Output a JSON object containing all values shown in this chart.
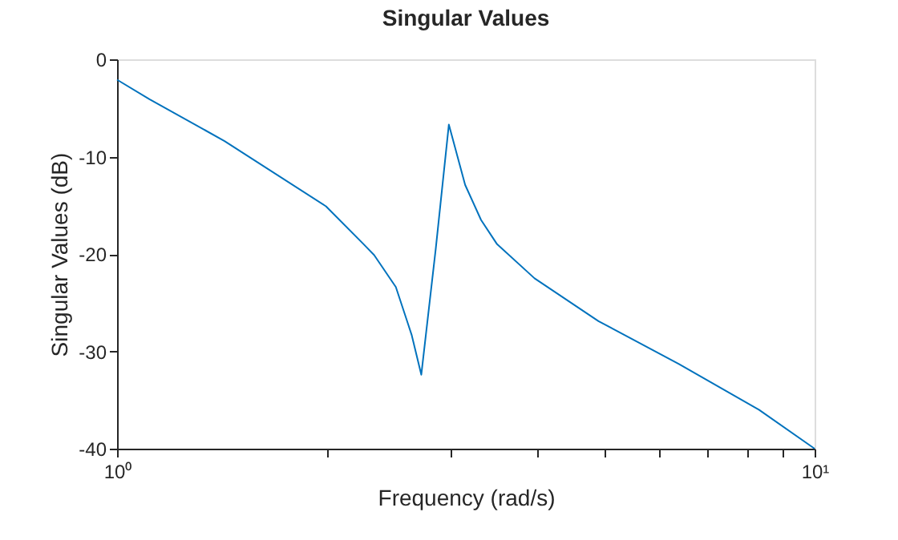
{
  "chart_data": {
    "type": "line",
    "title": "Singular Values",
    "xlabel": "Frequency (rad/s)",
    "ylabel": "Singular Values (dB)",
    "log": "x",
    "grid": false,
    "legend": false,
    "marker": "none",
    "line_style": "solid",
    "xlim": [
      1,
      10
    ],
    "ylim": [
      -40,
      0
    ],
    "xticks": [
      {
        "value": 1,
        "label": "10⁰"
      },
      {
        "value": 2,
        "label": null
      },
      {
        "value": 3,
        "label": null
      },
      {
        "value": 4,
        "label": null
      },
      {
        "value": 5,
        "label": null
      },
      {
        "value": 6,
        "label": null
      },
      {
        "value": 7,
        "label": null
      },
      {
        "value": 8,
        "label": null
      },
      {
        "value": 9,
        "label": null
      },
      {
        "value": 10,
        "label": "10¹"
      }
    ],
    "yticks": [
      -40,
      -30,
      -20,
      -10,
      0
    ],
    "series": [
      {
        "color": "#0072bd",
        "x": [
          1,
          1.113,
          1.426,
          1.993,
          2.257,
          2.336,
          2.51,
          2.644,
          2.73,
          2.863,
          2.99,
          3.155,
          3.325,
          3.506,
          3.967,
          4.9,
          6.39,
          8.32,
          10
        ],
        "values": [
          -2.1,
          -4.1,
          -8.4,
          -15.1,
          -19.0,
          -20.1,
          -23.4,
          -28.3,
          -32.4,
          -19.5,
          -6.7,
          -12.9,
          -16.5,
          -19.0,
          -22.5,
          -26.9,
          -31.3,
          -36.0,
          -40
        ]
      }
    ]
  }
}
